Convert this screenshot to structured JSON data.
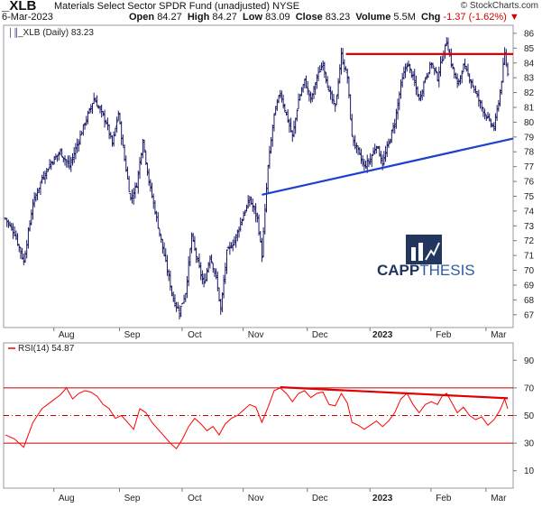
{
  "header": {
    "symbol": "_XLB",
    "description": "Materials Select Sector SPDR Fund (unadjusted)",
    "exchange": "NYSE",
    "date": "6-Mar-2023",
    "watermark": "© StockCharts.com",
    "open_label": "Open",
    "open": "84.27",
    "high_label": "High",
    "high": "84.27",
    "low_label": "Low",
    "low": "83.09",
    "close_label": "Close",
    "close": "83.23",
    "volume_label": "Volume",
    "volume": "5.5M",
    "chg_label": "Chg",
    "chg": "-1.37 (-1.62%)",
    "chg_marker": "▼"
  },
  "logo": {
    "brand_a": "CAPP",
    "brand_b": "THESIS"
  },
  "chart_data": [
    {
      "type": "ohlc",
      "legend": "_XLB (Daily) 83.23",
      "y_ticks": [
        67,
        68,
        69,
        70,
        71,
        72,
        73,
        74,
        75,
        76,
        77,
        78,
        79,
        80,
        81,
        82,
        83,
        84,
        85,
        86
      ],
      "ylim": [
        66.5,
        86.3
      ],
      "x_labels": [
        "Aug",
        "Sep",
        "Oct",
        "Nov",
        "Dec",
        "2023",
        "Feb",
        "Mar"
      ],
      "x_label_bars": [
        40,
        83,
        124,
        164,
        206,
        247,
        287,
        323
      ],
      "num_bars": 330,
      "closes": [
        {
          "bar": 0,
          "value": 73.5
        },
        {
          "bar": 6,
          "value": 72.5
        },
        {
          "bar": 12,
          "value": 70.6
        },
        {
          "bar": 18,
          "value": 74.5
        },
        {
          "bar": 24,
          "value": 76.2
        },
        {
          "bar": 30,
          "value": 77.3
        },
        {
          "bar": 36,
          "value": 78.0
        },
        {
          "bar": 42,
          "value": 77.0
        },
        {
          "bar": 48,
          "value": 78.8
        },
        {
          "bar": 54,
          "value": 80.5
        },
        {
          "bar": 58,
          "value": 81.6
        },
        {
          "bar": 62,
          "value": 80.8
        },
        {
          "bar": 66,
          "value": 80.0
        },
        {
          "bar": 70,
          "value": 78.5
        },
        {
          "bar": 74,
          "value": 80.6
        },
        {
          "bar": 78,
          "value": 77.5
        },
        {
          "bar": 82,
          "value": 74.8
        },
        {
          "bar": 86,
          "value": 75.8
        },
        {
          "bar": 90,
          "value": 78.8
        },
        {
          "bar": 94,
          "value": 76.0
        },
        {
          "bar": 98,
          "value": 74.0
        },
        {
          "bar": 102,
          "value": 72.0
        },
        {
          "bar": 106,
          "value": 70.0
        },
        {
          "bar": 110,
          "value": 68.0
        },
        {
          "bar": 114,
          "value": 67.2
        },
        {
          "bar": 118,
          "value": 68.5
        },
        {
          "bar": 122,
          "value": 72.3
        },
        {
          "bar": 126,
          "value": 70.5
        },
        {
          "bar": 130,
          "value": 69.0
        },
        {
          "bar": 134,
          "value": 71.0
        },
        {
          "bar": 138,
          "value": 69.5
        },
        {
          "bar": 141,
          "value": 67.3
        },
        {
          "bar": 145,
          "value": 71.2
        },
        {
          "bar": 150,
          "value": 72.0
        },
        {
          "bar": 155,
          "value": 73.5
        },
        {
          "bar": 160,
          "value": 74.8
        },
        {
          "bar": 165,
          "value": 73.5
        },
        {
          "bar": 168,
          "value": 71.0
        },
        {
          "bar": 172,
          "value": 77.0
        },
        {
          "bar": 176,
          "value": 80.5
        },
        {
          "bar": 180,
          "value": 82.0
        },
        {
          "bar": 184,
          "value": 80.5
        },
        {
          "bar": 188,
          "value": 79.0
        },
        {
          "bar": 192,
          "value": 81.5
        },
        {
          "bar": 196,
          "value": 82.8
        },
        {
          "bar": 200,
          "value": 81.5
        },
        {
          "bar": 204,
          "value": 83.0
        },
        {
          "bar": 208,
          "value": 84.0
        },
        {
          "bar": 212,
          "value": 82.0
        },
        {
          "bar": 216,
          "value": 81.0
        },
        {
          "bar": 220,
          "value": 84.5
        },
        {
          "bar": 224,
          "value": 83.0
        },
        {
          "bar": 227,
          "value": 79.0
        },
        {
          "bar": 231,
          "value": 78.0
        },
        {
          "bar": 235,
          "value": 77.0
        },
        {
          "bar": 239,
          "value": 77.5
        },
        {
          "bar": 243,
          "value": 78.5
        },
        {
          "bar": 247,
          "value": 77.2
        },
        {
          "bar": 251,
          "value": 78.6
        },
        {
          "bar": 255,
          "value": 80.0
        },
        {
          "bar": 259,
          "value": 82.5
        },
        {
          "bar": 263,
          "value": 84.0
        },
        {
          "bar": 267,
          "value": 83.0
        },
        {
          "bar": 271,
          "value": 81.5
        },
        {
          "bar": 275,
          "value": 83.0
        },
        {
          "bar": 279,
          "value": 84.0
        },
        {
          "bar": 283,
          "value": 83.0
        },
        {
          "bar": 286,
          "value": 84.3
        },
        {
          "bar": 289,
          "value": 85.5
        },
        {
          "bar": 292,
          "value": 84.0
        },
        {
          "bar": 296,
          "value": 82.5
        },
        {
          "bar": 300,
          "value": 83.8
        },
        {
          "bar": 304,
          "value": 83.0
        },
        {
          "bar": 308,
          "value": 82.0
        },
        {
          "bar": 312,
          "value": 81.0
        },
        {
          "bar": 316,
          "value": 80.2
        },
        {
          "bar": 320,
          "value": 79.6
        },
        {
          "bar": 324,
          "value": 82.0
        },
        {
          "bar": 327,
          "value": 84.6
        },
        {
          "bar": 329,
          "value": 83.23
        }
      ],
      "annotations": [
        {
          "kind": "resistance",
          "color": "#e00000",
          "from": {
            "bar": 223,
            "value": 84.6
          },
          "to": {
            "bar": 335,
            "value": 84.6
          }
        },
        {
          "kind": "trendline",
          "color": "#1f3fd1",
          "from": {
            "bar": 168,
            "value": 75.1
          },
          "to": {
            "bar": 350,
            "value": 79.3
          }
        }
      ]
    },
    {
      "type": "line",
      "legend": "RSI(14) 54.87",
      "y_ticks": [
        10,
        30,
        50,
        70,
        90
      ],
      "ylim": [
        0,
        100
      ],
      "series_color": "#ff0000",
      "ref_lines": [
        {
          "value": 70,
          "style": "solid",
          "color": "#c00000"
        },
        {
          "value": 50,
          "style": "dashdot",
          "color": "#c00000"
        },
        {
          "value": 30,
          "style": "solid",
          "color": "#c00000"
        }
      ],
      "points": [
        {
          "bar": 0,
          "value": 36
        },
        {
          "bar": 6,
          "value": 33
        },
        {
          "bar": 12,
          "value": 27
        },
        {
          "bar": 18,
          "value": 45
        },
        {
          "bar": 24,
          "value": 55
        },
        {
          "bar": 30,
          "value": 60
        },
        {
          "bar": 36,
          "value": 65
        },
        {
          "bar": 40,
          "value": 70
        },
        {
          "bar": 44,
          "value": 62
        },
        {
          "bar": 48,
          "value": 66
        },
        {
          "bar": 52,
          "value": 68
        },
        {
          "bar": 56,
          "value": 67
        },
        {
          "bar": 60,
          "value": 64
        },
        {
          "bar": 64,
          "value": 58
        },
        {
          "bar": 68,
          "value": 55
        },
        {
          "bar": 72,
          "value": 48
        },
        {
          "bar": 76,
          "value": 50
        },
        {
          "bar": 80,
          "value": 45
        },
        {
          "bar": 84,
          "value": 40
        },
        {
          "bar": 88,
          "value": 55
        },
        {
          "bar": 92,
          "value": 52
        },
        {
          "bar": 96,
          "value": 45
        },
        {
          "bar": 100,
          "value": 40
        },
        {
          "bar": 104,
          "value": 35
        },
        {
          "bar": 108,
          "value": 30
        },
        {
          "bar": 112,
          "value": 26
        },
        {
          "bar": 116,
          "value": 33
        },
        {
          "bar": 120,
          "value": 42
        },
        {
          "bar": 124,
          "value": 48
        },
        {
          "bar": 128,
          "value": 44
        },
        {
          "bar": 132,
          "value": 39
        },
        {
          "bar": 136,
          "value": 42
        },
        {
          "bar": 140,
          "value": 36
        },
        {
          "bar": 144,
          "value": 44
        },
        {
          "bar": 148,
          "value": 48
        },
        {
          "bar": 152,
          "value": 50
        },
        {
          "bar": 156,
          "value": 54
        },
        {
          "bar": 160,
          "value": 58
        },
        {
          "bar": 164,
          "value": 56
        },
        {
          "bar": 168,
          "value": 45
        },
        {
          "bar": 172,
          "value": 56
        },
        {
          "bar": 176,
          "value": 68
        },
        {
          "bar": 180,
          "value": 70
        },
        {
          "bar": 184,
          "value": 66
        },
        {
          "bar": 188,
          "value": 60
        },
        {
          "bar": 192,
          "value": 66
        },
        {
          "bar": 196,
          "value": 68
        },
        {
          "bar": 200,
          "value": 63
        },
        {
          "bar": 204,
          "value": 66
        },
        {
          "bar": 208,
          "value": 67
        },
        {
          "bar": 212,
          "value": 58
        },
        {
          "bar": 216,
          "value": 57
        },
        {
          "bar": 220,
          "value": 66
        },
        {
          "bar": 224,
          "value": 59
        },
        {
          "bar": 227,
          "value": 45
        },
        {
          "bar": 231,
          "value": 43
        },
        {
          "bar": 235,
          "value": 40
        },
        {
          "bar": 239,
          "value": 43
        },
        {
          "bar": 243,
          "value": 46
        },
        {
          "bar": 247,
          "value": 42
        },
        {
          "bar": 251,
          "value": 46
        },
        {
          "bar": 255,
          "value": 52
        },
        {
          "bar": 259,
          "value": 62
        },
        {
          "bar": 263,
          "value": 66
        },
        {
          "bar": 267,
          "value": 58
        },
        {
          "bar": 271,
          "value": 52
        },
        {
          "bar": 275,
          "value": 58
        },
        {
          "bar": 279,
          "value": 60
        },
        {
          "bar": 283,
          "value": 58
        },
        {
          "bar": 286,
          "value": 64
        },
        {
          "bar": 289,
          "value": 66
        },
        {
          "bar": 292,
          "value": 60
        },
        {
          "bar": 296,
          "value": 52
        },
        {
          "bar": 300,
          "value": 56
        },
        {
          "bar": 304,
          "value": 50
        },
        {
          "bar": 308,
          "value": 47
        },
        {
          "bar": 312,
          "value": 49
        },
        {
          "bar": 316,
          "value": 43
        },
        {
          "bar": 320,
          "value": 47
        },
        {
          "bar": 324,
          "value": 54
        },
        {
          "bar": 327,
          "value": 62
        },
        {
          "bar": 329,
          "value": 54.87
        }
      ],
      "annotations": [
        {
          "kind": "divergence",
          "color": "#e00000",
          "from": {
            "bar": 180,
            "value": 70.5
          },
          "to": {
            "bar": 329,
            "value": 62.5
          }
        }
      ]
    }
  ]
}
